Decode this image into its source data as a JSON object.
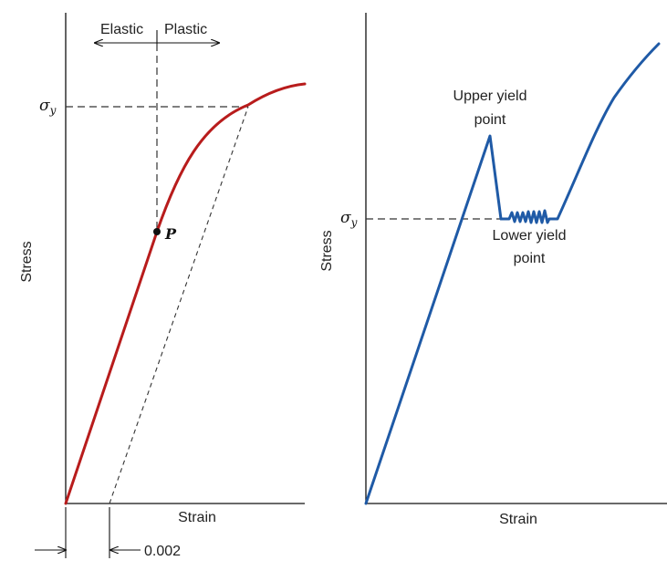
{
  "colors": {
    "left_curve": "#b81c1c",
    "right_curve": "#1f5aa6"
  },
  "left": {
    "elastic": "Elastic",
    "plastic": "Plastic",
    "sigma": "σ",
    "sigma_sub": "y",
    "point": "P",
    "ylabel": "Stress",
    "xlabel": "Strain",
    "offset": "0.002"
  },
  "right": {
    "sigma": "σ",
    "sigma_sub": "y",
    "ylabel": "Stress",
    "xlabel": "Strain",
    "upper_1": "Upper yield",
    "upper_2": "point",
    "lower_1": "Lower yield",
    "lower_2": "point"
  }
}
